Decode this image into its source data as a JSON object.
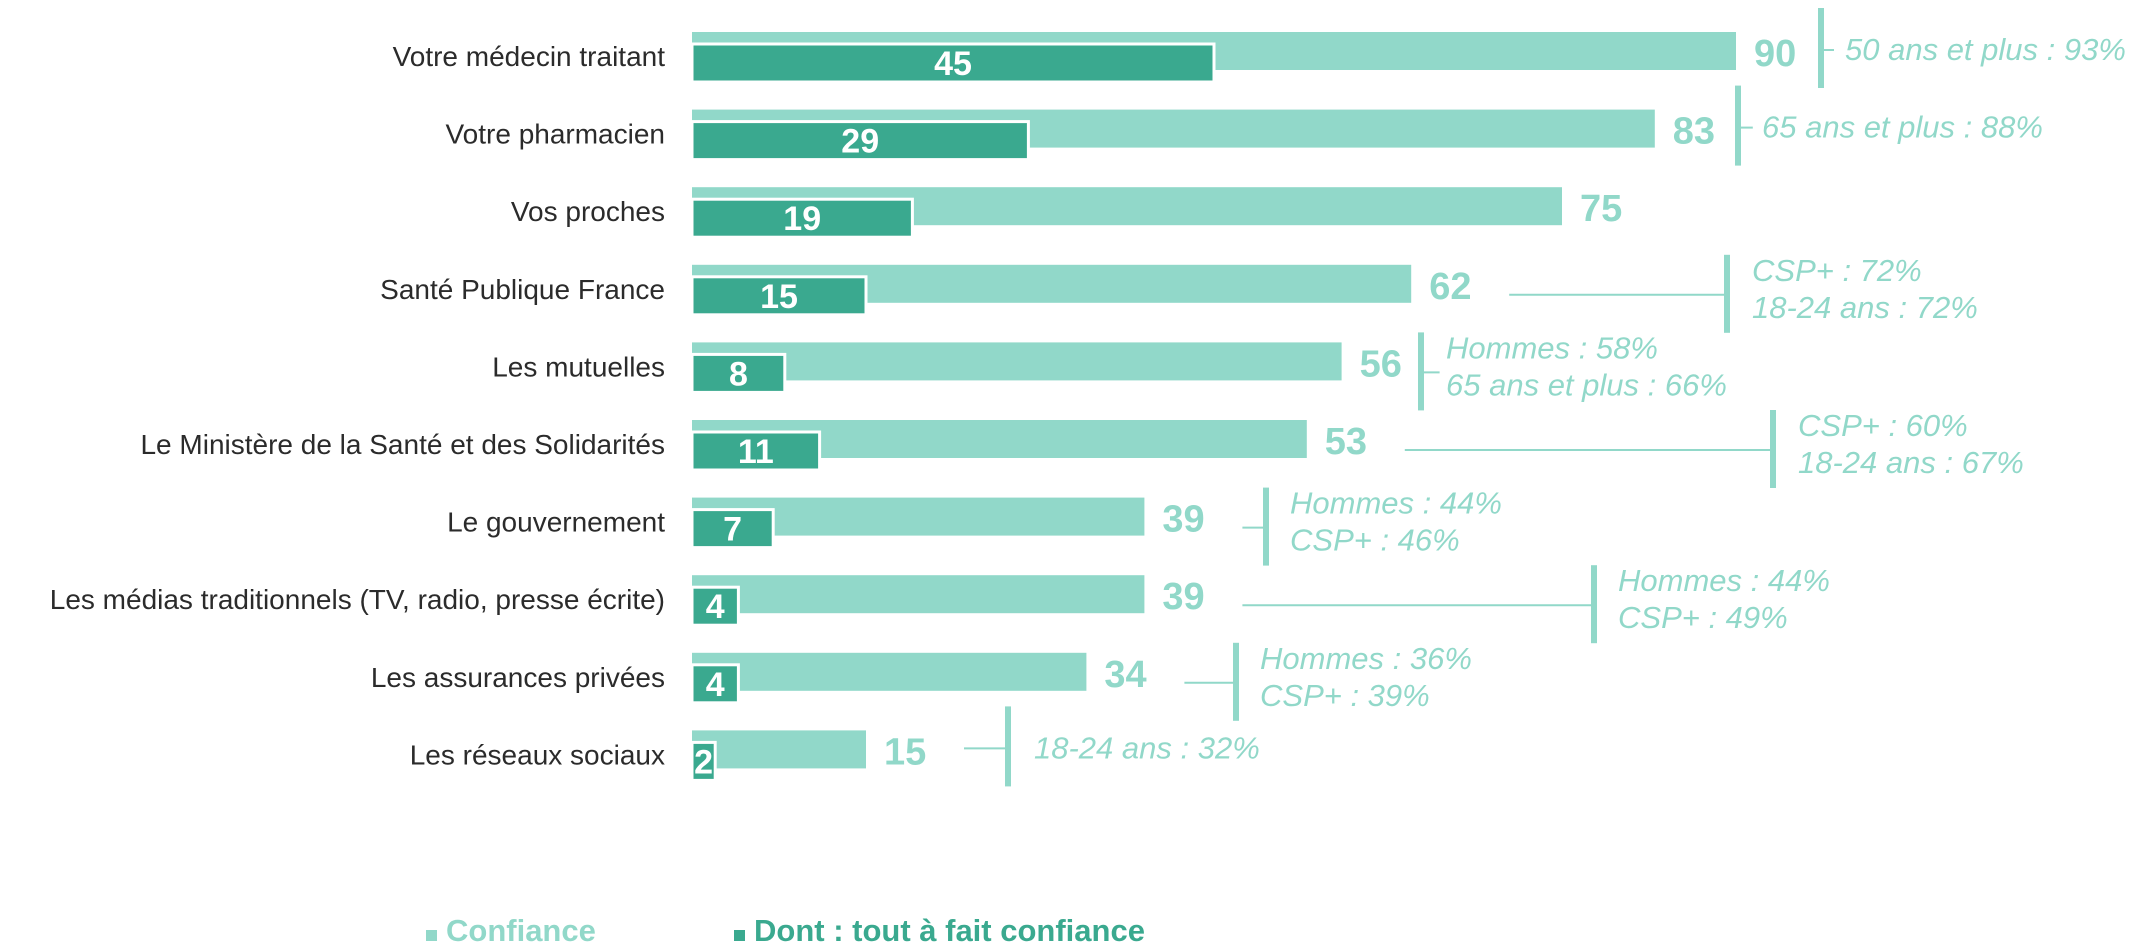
{
  "colors": {
    "confiance": "#91d8c9",
    "tout_a_fait": "#3aa98f",
    "annotation": "#91d8c9",
    "label": "#2b2b2b"
  },
  "legend": {
    "confiance": "Confiance",
    "tout_a_fait": "Dont : tout à fait confiance"
  },
  "chart_data": {
    "type": "bar",
    "orientation": "horizontal",
    "categories": [
      "Votre médecin traitant",
      "Votre pharmacien",
      "Vos proches",
      "Santé Publique France",
      "Les mutuelles",
      "Le Ministère de la Santé et des Solidarités",
      "Le gouvernement",
      "Les médias traditionnels (TV, radio, presse écrite)",
      "Les assurances privées",
      "Les réseaux sociaux"
    ],
    "series": [
      {
        "name": "Confiance",
        "values": [
          90,
          83,
          75,
          62,
          56,
          53,
          39,
          39,
          34,
          15
        ]
      },
      {
        "name": "Dont : tout à fait confiance",
        "values": [
          45,
          29,
          19,
          15,
          8,
          11,
          7,
          4,
          4,
          2
        ]
      }
    ],
    "annotations": [
      [
        "50 ans et plus : 93%"
      ],
      [
        "65 ans et plus : 88%"
      ],
      [],
      [
        "CSP+ : 72%",
        "18-24 ans : 72%"
      ],
      [
        "Hommes : 58%",
        "65 ans et plus : 66%"
      ],
      [
        "CSP+ : 60%",
        "18-24 ans : 67%"
      ],
      [
        "Hommes : 44%",
        "CSP+ : 46%"
      ],
      [
        "Hommes : 44%",
        "CSP+ : 49%"
      ],
      [
        "Hommes : 36%",
        "CSP+ : 39%"
      ],
      [
        "18-24 ans : 32%"
      ]
    ],
    "xlim": [
      0,
      100
    ],
    "legend_position": "bottom-left",
    "grid": false
  }
}
